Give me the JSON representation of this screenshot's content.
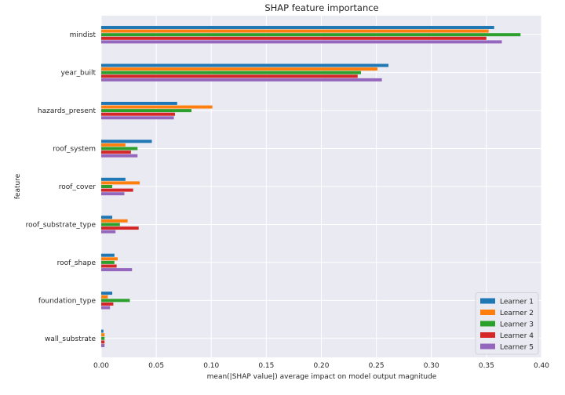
{
  "chart_data": {
    "type": "bar",
    "orientation": "horizontal",
    "title": "SHAP feature importance",
    "xlabel": "mean(|SHAP value|) average impact on model output magnitude",
    "ylabel": "feature",
    "xlim": [
      0,
      0.4
    ],
    "xticks": [
      "0.00",
      "0.05",
      "0.10",
      "0.15",
      "0.20",
      "0.25",
      "0.30",
      "0.35",
      "0.40"
    ],
    "grid": true,
    "legend_position": "bottom-right",
    "categories": [
      "mindist",
      "year_built",
      "hazards_present",
      "roof_system",
      "roof_cover",
      "roof_substrate_type",
      "roof_shape",
      "foundation_type",
      "wall_substrate"
    ],
    "series": [
      {
        "name": "Learner 1",
        "color": "#1f77b4",
        "values": [
          0.357,
          0.261,
          0.069,
          0.046,
          0.022,
          0.01,
          0.012,
          0.01,
          0.002
        ]
      },
      {
        "name": "Learner 2",
        "color": "#ff7f0e",
        "values": [
          0.352,
          0.251,
          0.101,
          0.022,
          0.035,
          0.024,
          0.015,
          0.006,
          0.003
        ]
      },
      {
        "name": "Learner 3",
        "color": "#2ca02c",
        "values": [
          0.381,
          0.236,
          0.082,
          0.033,
          0.01,
          0.017,
          0.012,
          0.026,
          0.003
        ]
      },
      {
        "name": "Learner 4",
        "color": "#d62728",
        "values": [
          0.35,
          0.233,
          0.067,
          0.027,
          0.029,
          0.034,
          0.014,
          0.011,
          0.003
        ]
      },
      {
        "name": "Learner 5",
        "color": "#9467bd",
        "values": [
          0.364,
          0.255,
          0.066,
          0.033,
          0.021,
          0.013,
          0.028,
          0.008,
          0.003
        ]
      }
    ]
  }
}
